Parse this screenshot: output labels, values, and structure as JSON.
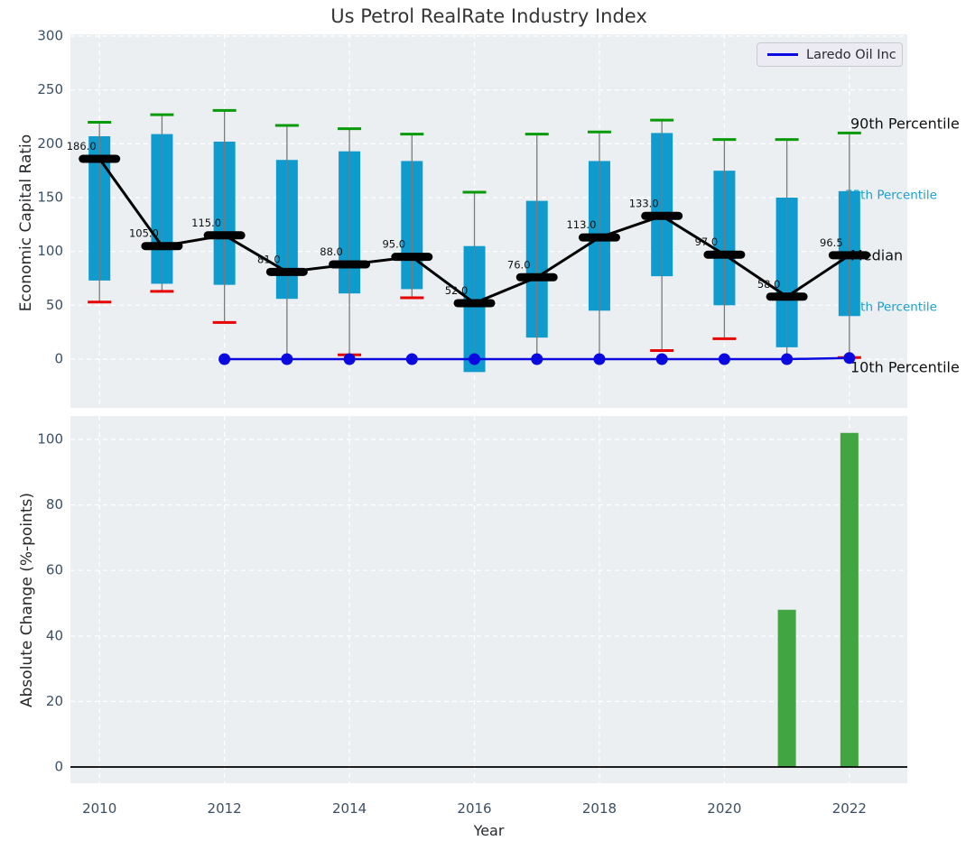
{
  "title": "Us Petrol RealRate Industry Index",
  "legend": {
    "label": "Laredo Oil Inc"
  },
  "colors": {
    "iqr_bar": "#0f9bce",
    "p90_cap": "#089a08",
    "p10_cap": "#e80000",
    "median": "#000000",
    "company_line": "#0a0ae0",
    "change_bar": "#41a541",
    "panel_bg": "#eceff1",
    "grid": "#ffffff",
    "whisker": "#7a7a7a",
    "tick_label": "#3c4f65",
    "side_label_black": "#111111",
    "side_label_cyan": "#1b9fcb"
  },
  "top_panel": {
    "ylabel": "Economic Capital Ratio",
    "yticks": [
      0,
      50,
      100,
      150,
      200,
      250,
      300
    ],
    "side_labels": [
      {
        "text": "90th Percentile",
        "value": 218,
        "color": "#111111",
        "size": 16
      },
      {
        "text": "75th Percentile",
        "value": 152,
        "color": "#1b9fcb",
        "size": 13.5
      },
      {
        "text": "Median",
        "value": 95.5,
        "color": "#111111",
        "size": 16
      },
      {
        "text": "25th Percentile",
        "value": 48,
        "color": "#1b9fcb",
        "size": 13.5
      },
      {
        "text": "10th Percentile",
        "value": -8.5,
        "color": "#111111",
        "size": 16
      }
    ]
  },
  "bottom_panel": {
    "ylabel": "Absolute Change (%-points)",
    "xlabel": "Year",
    "yticks": [
      0,
      20,
      40,
      60,
      80,
      100
    ],
    "xticks": [
      2010,
      2012,
      2014,
      2016,
      2018,
      2020,
      2022
    ]
  },
  "chart_data": [
    {
      "type": "boxplot",
      "panel": "top",
      "title": "Us Petrol RealRate Industry Index",
      "ylabel": "Economic Capital Ratio",
      "ylim": [
        -47,
        305
      ],
      "years": [
        2010,
        2011,
        2012,
        2013,
        2014,
        2015,
        2016,
        2017,
        2018,
        2019,
        2020,
        2021,
        2022
      ],
      "median": [
        186,
        105,
        115,
        81,
        88,
        95,
        52,
        76,
        113,
        133,
        97,
        58,
        96.5
      ],
      "p75": [
        207,
        209,
        202,
        185,
        193,
        184,
        105,
        147,
        184,
        210,
        175,
        150,
        156
      ],
      "p25": [
        73,
        70,
        69,
        56,
        61,
        65,
        -12,
        20,
        45,
        77,
        50,
        11,
        40
      ],
      "p90": [
        220,
        227,
        231,
        217,
        214,
        209,
        155,
        209,
        211,
        222,
        204,
        204,
        210
      ],
      "p10": [
        53,
        63,
        34,
        null,
        4,
        57,
        null,
        null,
        null,
        8,
        19,
        null,
        1.5
      ],
      "whisker_low": [
        53,
        63,
        34,
        0,
        4,
        57,
        0,
        0,
        0,
        8,
        19,
        0,
        1.5
      ],
      "median_labels": [
        "186.0",
        "105.0",
        "115.0",
        "81.0",
        "88.0",
        "95.0",
        "52.0",
        "76.0",
        "113.0",
        "133.0",
        "97.0",
        "58.0",
        "96.5"
      ],
      "company": {
        "name": "Laredo Oil Inc",
        "years": [
          2012,
          2013,
          2014,
          2015,
          2016,
          2017,
          2018,
          2019,
          2020,
          2021,
          2022
        ],
        "values": [
          0,
          0,
          0,
          0,
          0,
          0,
          0,
          0,
          0,
          0,
          1
        ]
      }
    },
    {
      "type": "bar",
      "panel": "bottom",
      "ylabel": "Absolute Change (%-points)",
      "xlabel": "Year",
      "ylim": [
        0,
        105
      ],
      "years": [
        2021,
        2022
      ],
      "values": [
        48,
        102
      ]
    }
  ]
}
